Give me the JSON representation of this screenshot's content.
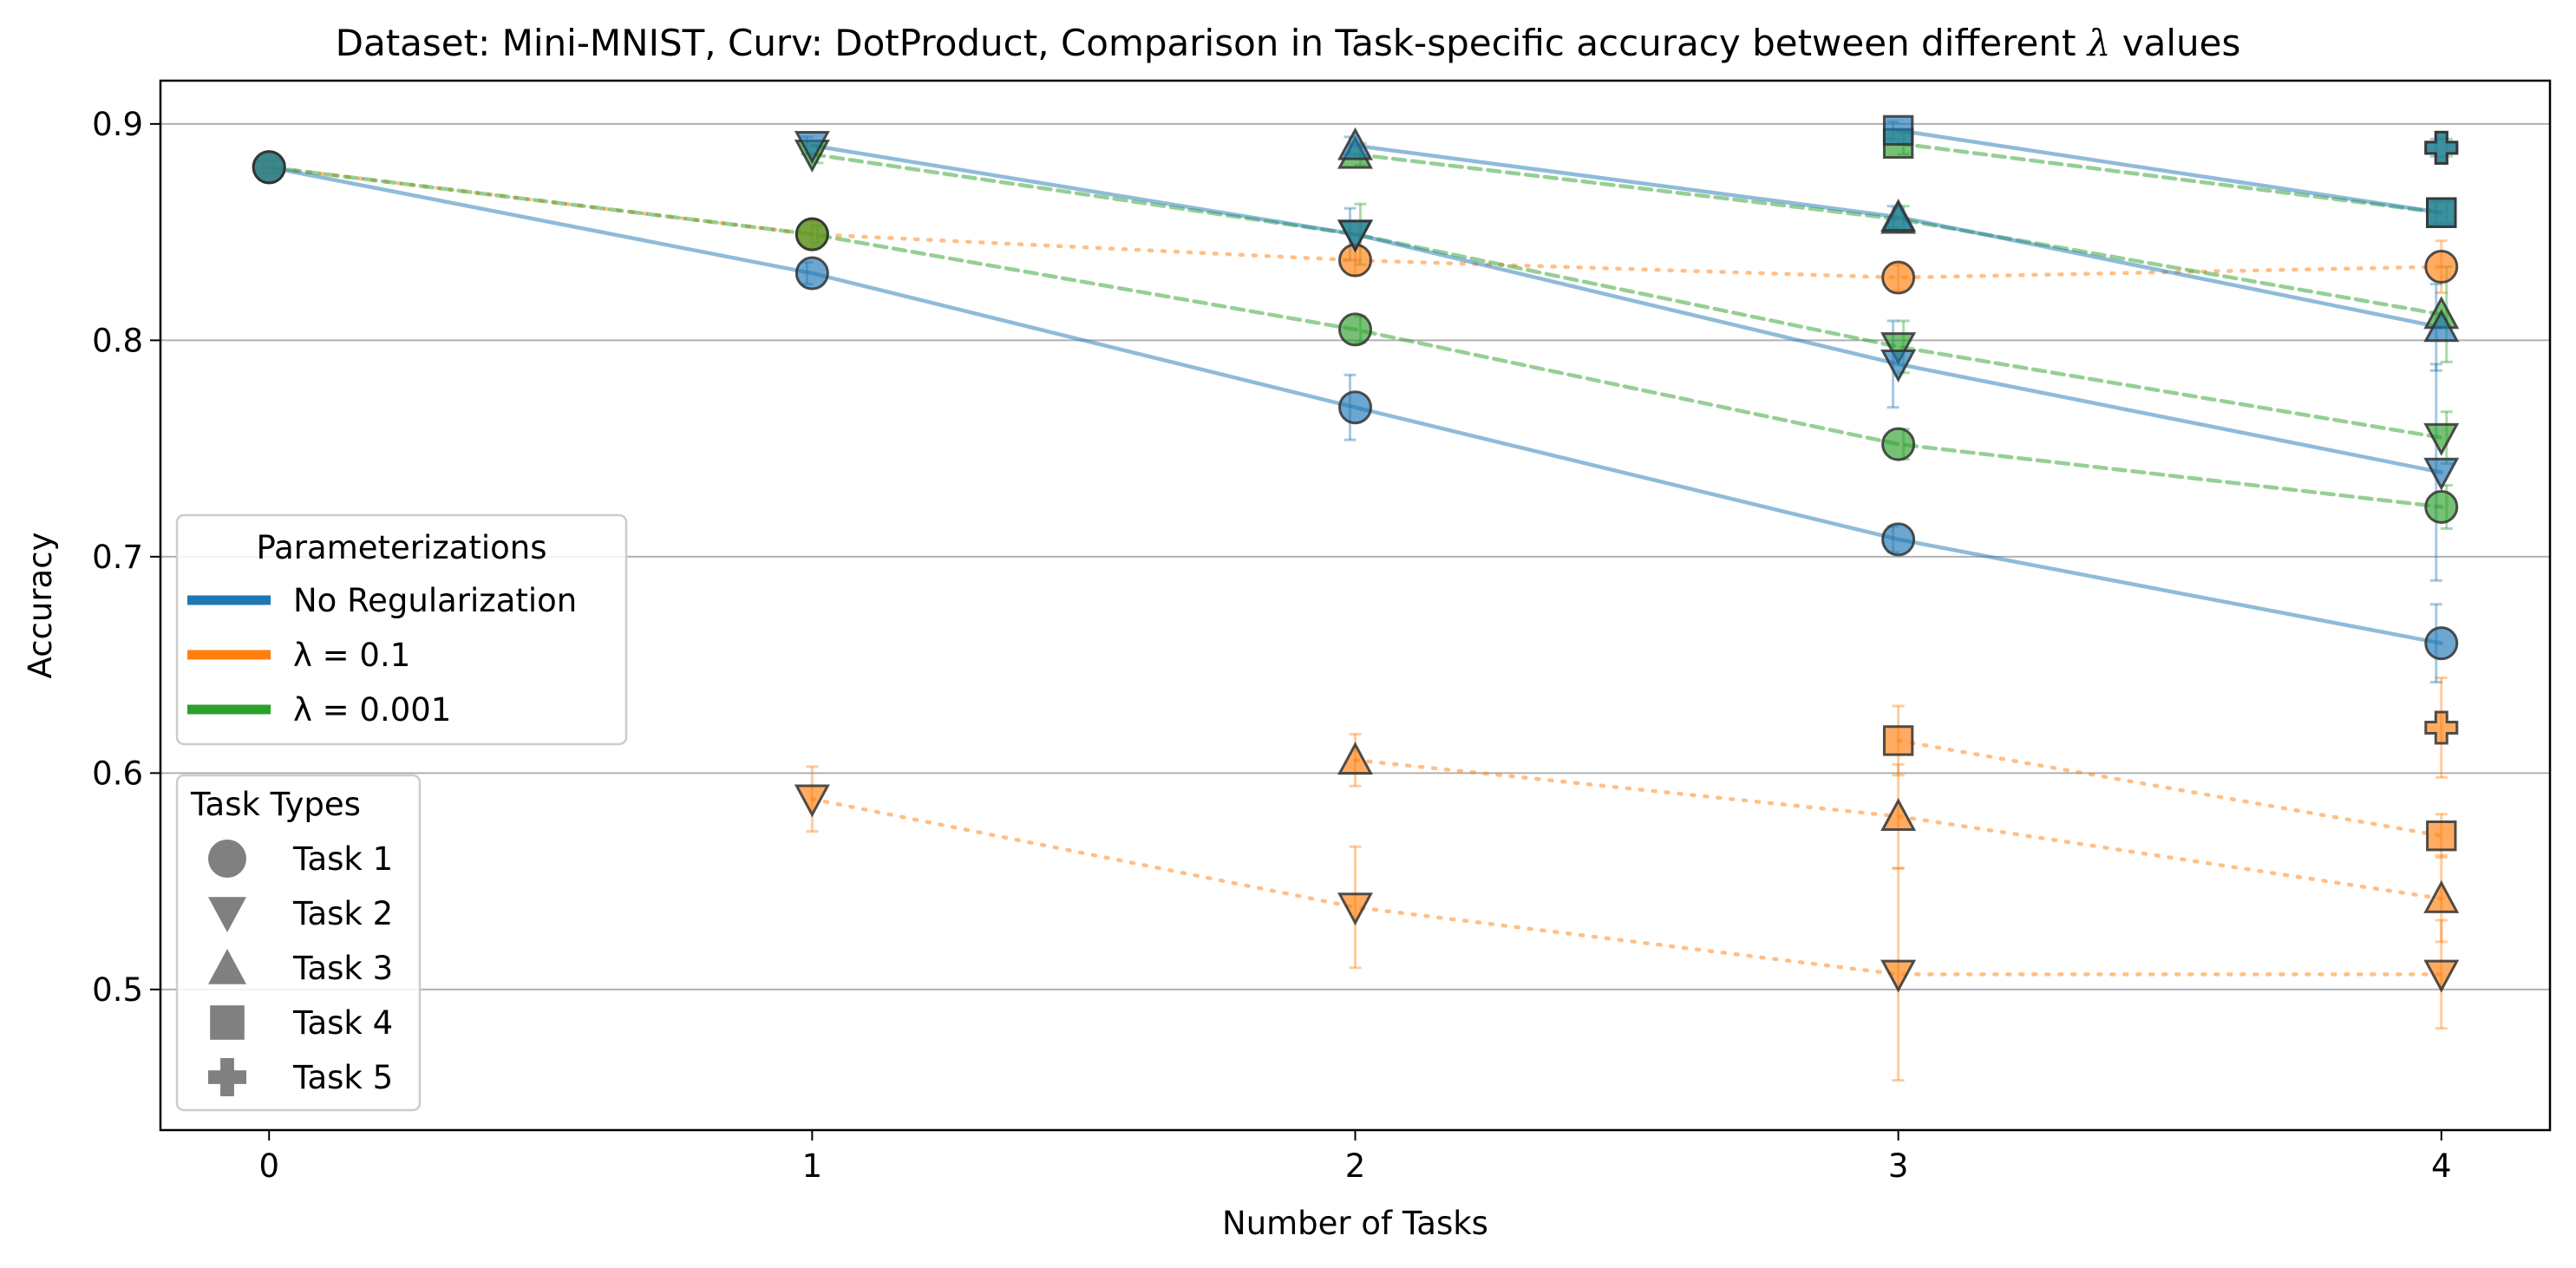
{
  "chart_data": {
    "type": "line",
    "title": "Dataset: Mini-MNIST, Curv: DotProduct, Comparison in Task-specific accuracy between different",
    "title_symbol": "λ",
    "title_suffix": "values",
    "xlabel": "Number of Tasks",
    "ylabel": "Accuracy",
    "xlim": [
      -0.2,
      4.2
    ],
    "ylim": [
      0.435,
      0.92
    ],
    "xticks": [
      0,
      1,
      2,
      3,
      4
    ],
    "xtick_labels": [
      "0",
      "1",
      "2",
      "3",
      "4"
    ],
    "yticks": [
      0.5,
      0.6,
      0.7,
      0.8,
      0.9
    ],
    "ytick_labels": [
      "0.5",
      "0.6",
      "0.7",
      "0.8",
      "0.9"
    ],
    "grid": "horizontal",
    "parameterizations": [
      {
        "key": "none",
        "name": "No Regularization",
        "color": "#1f77b4",
        "dash": "solid"
      },
      {
        "key": "l01",
        "name": "λ = 0.1",
        "color": "#ff7f0e",
        "dash": "dotted"
      },
      {
        "key": "l0001",
        "name": "λ = 0.001",
        "color": "#2ca02c",
        "dash": "dashed"
      }
    ],
    "task_types": [
      {
        "name": "Task 1",
        "marker": "circle"
      },
      {
        "name": "Task 2",
        "marker": "triangle-down"
      },
      {
        "name": "Task 3",
        "marker": "triangle-up"
      },
      {
        "name": "Task 4",
        "marker": "square"
      },
      {
        "name": "Task 5",
        "marker": "plus"
      }
    ],
    "legend_parameterizations": {
      "title": "Parameterizations",
      "placement": "center-left"
    },
    "legend_tasks": {
      "title": "Task Types",
      "placement": "lower-left"
    },
    "series": [
      {
        "param": "l01",
        "task": 1,
        "x": [
          0,
          1,
          2,
          3,
          4
        ],
        "y": [
          0.88,
          0.849,
          0.837,
          0.829,
          0.834
        ],
        "err": [
          0.003,
          0.006,
          0.007,
          0.006,
          0.012
        ]
      },
      {
        "param": "l01",
        "task": 2,
        "x": [
          1,
          2,
          3,
          4
        ],
        "y": [
          0.588,
          0.538,
          0.507,
          0.507
        ],
        "err": [
          0.015,
          0.028,
          0.049,
          0.025
        ]
      },
      {
        "param": "l01",
        "task": 3,
        "x": [
          2,
          3,
          4
        ],
        "y": [
          0.606,
          0.58,
          0.542
        ],
        "err": [
          0.012,
          0.024,
          0.02
        ]
      },
      {
        "param": "l01",
        "task": 4,
        "x": [
          3,
          4
        ],
        "y": [
          0.615,
          0.571
        ],
        "err": [
          0.016,
          0.01
        ]
      },
      {
        "param": "l01",
        "task": 5,
        "x": [
          4
        ],
        "y": [
          0.621
        ],
        "err": [
          0.023
        ]
      },
      {
        "param": "l0001",
        "task": 1,
        "x": [
          0,
          1,
          2,
          3,
          4
        ],
        "y": [
          0.88,
          0.849,
          0.805,
          0.752,
          0.723
        ],
        "err": [
          0.003,
          0.004,
          0.006,
          0.007,
          0.01
        ]
      },
      {
        "param": "l0001",
        "task": 2,
        "x": [
          1,
          2,
          3,
          4
        ],
        "y": [
          0.886,
          0.849,
          0.797,
          0.755
        ],
        "err": [
          0.004,
          0.014,
          0.012,
          0.012
        ]
      },
      {
        "param": "l0001",
        "task": 3,
        "x": [
          2,
          3,
          4
        ],
        "y": [
          0.886,
          0.856,
          0.812
        ],
        "err": [
          0.005,
          0.006,
          0.022
        ]
      },
      {
        "param": "l0001",
        "task": 4,
        "x": [
          3,
          4
        ],
        "y": [
          0.891,
          0.859
        ],
        "err": [
          0.005,
          0.005
        ]
      },
      {
        "param": "l0001",
        "task": 5,
        "x": [
          4
        ],
        "y": [
          0.889
        ],
        "err": [
          0.004
        ]
      },
      {
        "param": "none",
        "task": 1,
        "x": [
          0,
          1,
          2,
          3,
          4
        ],
        "y": [
          0.88,
          0.831,
          0.769,
          0.708,
          0.66
        ],
        "err": [
          0.003,
          0.005,
          0.015,
          0.006,
          0.018
        ]
      },
      {
        "param": "none",
        "task": 2,
        "x": [
          1,
          2,
          3,
          4
        ],
        "y": [
          0.89,
          0.849,
          0.789,
          0.739
        ],
        "err": [
          0.004,
          0.012,
          0.02,
          0.05
        ]
      },
      {
        "param": "none",
        "task": 3,
        "x": [
          2,
          3,
          4
        ],
        "y": [
          0.89,
          0.857,
          0.806
        ],
        "err": [
          0.004,
          0.005,
          0.02
        ]
      },
      {
        "param": "none",
        "task": 4,
        "x": [
          3,
          4
        ],
        "y": [
          0.897,
          0.859
        ],
        "err": [
          0.004,
          0.005
        ]
      },
      {
        "param": "none",
        "task": 5,
        "x": [
          4
        ],
        "y": [
          0.889
        ],
        "err": [
          0.004
        ]
      }
    ]
  }
}
